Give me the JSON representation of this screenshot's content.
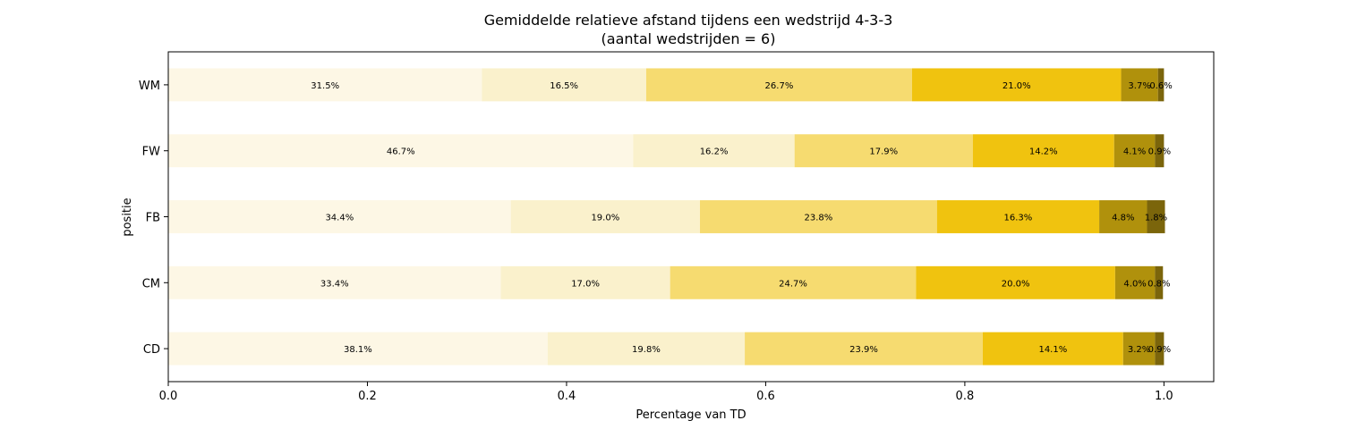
{
  "chart_data": {
    "type": "bar",
    "orientation": "horizontal",
    "stacked": true,
    "title_line1": "Gemiddelde relatieve afstand tijdens een wedstrijd 4-3-3",
    "title_line2": "(aantal wedstrijden = 6)",
    "xlabel": "Percentage van TD",
    "ylabel": "positie",
    "xlim": [
      0.0,
      1.05
    ],
    "xticks": [
      "0.0",
      "0.2",
      "0.4",
      "0.6",
      "0.8",
      "1.0"
    ],
    "categories": [
      "WM",
      "FW",
      "FB",
      "CM",
      "CD"
    ],
    "legend": "none",
    "grid": false,
    "series": [
      {
        "color": "#fdf7e5",
        "values": [
          0.315,
          0.467,
          0.344,
          0.334,
          0.381
        ],
        "labels": [
          "31.5%",
          "46.7%",
          "34.4%",
          "33.4%",
          "38.1%"
        ]
      },
      {
        "color": "#faf1cc",
        "values": [
          0.165,
          0.162,
          0.19,
          0.17,
          0.198
        ],
        "labels": [
          "16.5%",
          "16.2%",
          "19.0%",
          "17.0%",
          "19.8%"
        ]
      },
      {
        "color": "#f6db70",
        "values": [
          0.267,
          0.179,
          0.238,
          0.247,
          0.239
        ],
        "labels": [
          "26.7%",
          "17.9%",
          "23.8%",
          "24.7%",
          "23.9%"
        ]
      },
      {
        "color": "#f0c30f",
        "values": [
          0.21,
          0.142,
          0.163,
          0.2,
          0.141
        ],
        "labels": [
          "21.0%",
          "14.2%",
          "16.3%",
          "20.0%",
          "14.1%"
        ]
      },
      {
        "color": "#b0910c",
        "values": [
          0.037,
          0.041,
          0.048,
          0.04,
          0.032
        ],
        "labels": [
          "3.7%",
          "4.1%",
          "4.8%",
          "4.0%",
          "3.2%"
        ]
      },
      {
        "color": "#7b650b",
        "values": [
          0.006,
          0.009,
          0.018,
          0.008,
          0.009
        ],
        "labels": [
          "0.6%",
          "0.9%",
          "1.8%",
          "0.8%",
          "0.9%"
        ]
      }
    ]
  }
}
